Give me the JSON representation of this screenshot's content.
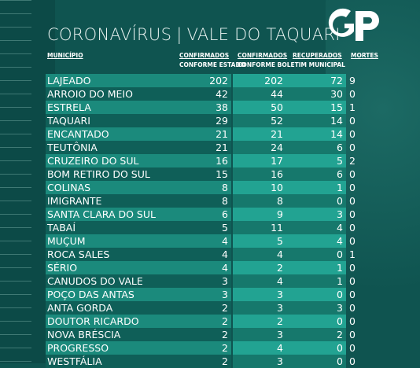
{
  "title": {
    "prefix": "CORONAVÍRUS",
    "separator": "|",
    "region": "VALE DO TAQUARI"
  },
  "logo": {
    "text": "GP"
  },
  "headers": {
    "municipio": "MUNICÍPIO",
    "confirmados_estado_1": "CONFIRMADOS",
    "confirmados_estado_2": "CONFORME ESTADO",
    "confirmados_municipal_1": "CONFIRMADOS",
    "confirmados_municipal_2": "CONFORME BOLETIM MUNICIPAL",
    "recuperados": "RECUPERADOS",
    "mortes": "MORTES"
  },
  "rows": [
    {
      "municipio": "LAJEADO",
      "estado": "202",
      "municipal": "202",
      "recuperados": "72",
      "mortes": "9"
    },
    {
      "municipio": "ARROIO DO MEIO",
      "estado": "42",
      "municipal": "44",
      "recuperados": "30",
      "mortes": "0"
    },
    {
      "municipio": "ESTRELA",
      "estado": "38",
      "municipal": "50",
      "recuperados": "15",
      "mortes": "1"
    },
    {
      "municipio": "TAQUARI",
      "estado": "29",
      "municipal": "52",
      "recuperados": "14",
      "mortes": "0"
    },
    {
      "municipio": "ENCANTADO",
      "estado": "21",
      "municipal": "21",
      "recuperados": "14",
      "mortes": "0"
    },
    {
      "municipio": "TEUTÔNIA",
      "estado": "21",
      "municipal": "24",
      "recuperados": "6",
      "mortes": "0"
    },
    {
      "municipio": "CRUZEIRO DO SUL",
      "estado": "16",
      "municipal": "17",
      "recuperados": "5",
      "mortes": "2"
    },
    {
      "municipio": "BOM RETIRO DO SUL",
      "estado": "15",
      "municipal": "16",
      "recuperados": "6",
      "mortes": "0"
    },
    {
      "municipio": "COLINAS",
      "estado": "8",
      "municipal": "10",
      "recuperados": "1",
      "mortes": "0"
    },
    {
      "municipio": "IMIGRANTE",
      "estado": "8",
      "municipal": "8",
      "recuperados": "0",
      "mortes": "0"
    },
    {
      "municipio": "SANTA CLARA DO SUL",
      "estado": "6",
      "municipal": "9",
      "recuperados": "3",
      "mortes": "0"
    },
    {
      "municipio": "TABAÍ",
      "estado": "5",
      "municipal": "11",
      "recuperados": "4",
      "mortes": "0"
    },
    {
      "municipio": "MUÇUM",
      "estado": "4",
      "municipal": "5",
      "recuperados": "4",
      "mortes": "0"
    },
    {
      "municipio": "ROCA SALES",
      "estado": "4",
      "municipal": "4",
      "recuperados": "0",
      "mortes": "1"
    },
    {
      "municipio": "SÉRIO",
      "estado": "4",
      "municipal": "2",
      "recuperados": "1",
      "mortes": "0"
    },
    {
      "municipio": "CANUDOS DO VALE",
      "estado": "3",
      "municipal": "4",
      "recuperados": "1",
      "mortes": "0"
    },
    {
      "municipio": "POÇO DAS ANTAS",
      "estado": "3",
      "municipal": "3",
      "recuperados": "0",
      "mortes": "0"
    },
    {
      "municipio": "ANTA GORDA",
      "estado": "2",
      "municipal": "3",
      "recuperados": "3",
      "mortes": "0"
    },
    {
      "municipio": "DOUTOR RICARDO",
      "estado": "2",
      "municipal": "2",
      "recuperados": "0",
      "mortes": "0"
    },
    {
      "municipio": "NOVA BRÉSCIA",
      "estado": "2",
      "municipal": "3",
      "recuperados": "2",
      "mortes": "0"
    },
    {
      "municipio": "PROGRESSO",
      "estado": "2",
      "municipal": "4",
      "recuperados": "0",
      "mortes": "0"
    },
    {
      "municipio": "WESTFÁLIA",
      "estado": "2",
      "municipal": "3",
      "recuperados": "0",
      "mortes": "0"
    }
  ]
}
